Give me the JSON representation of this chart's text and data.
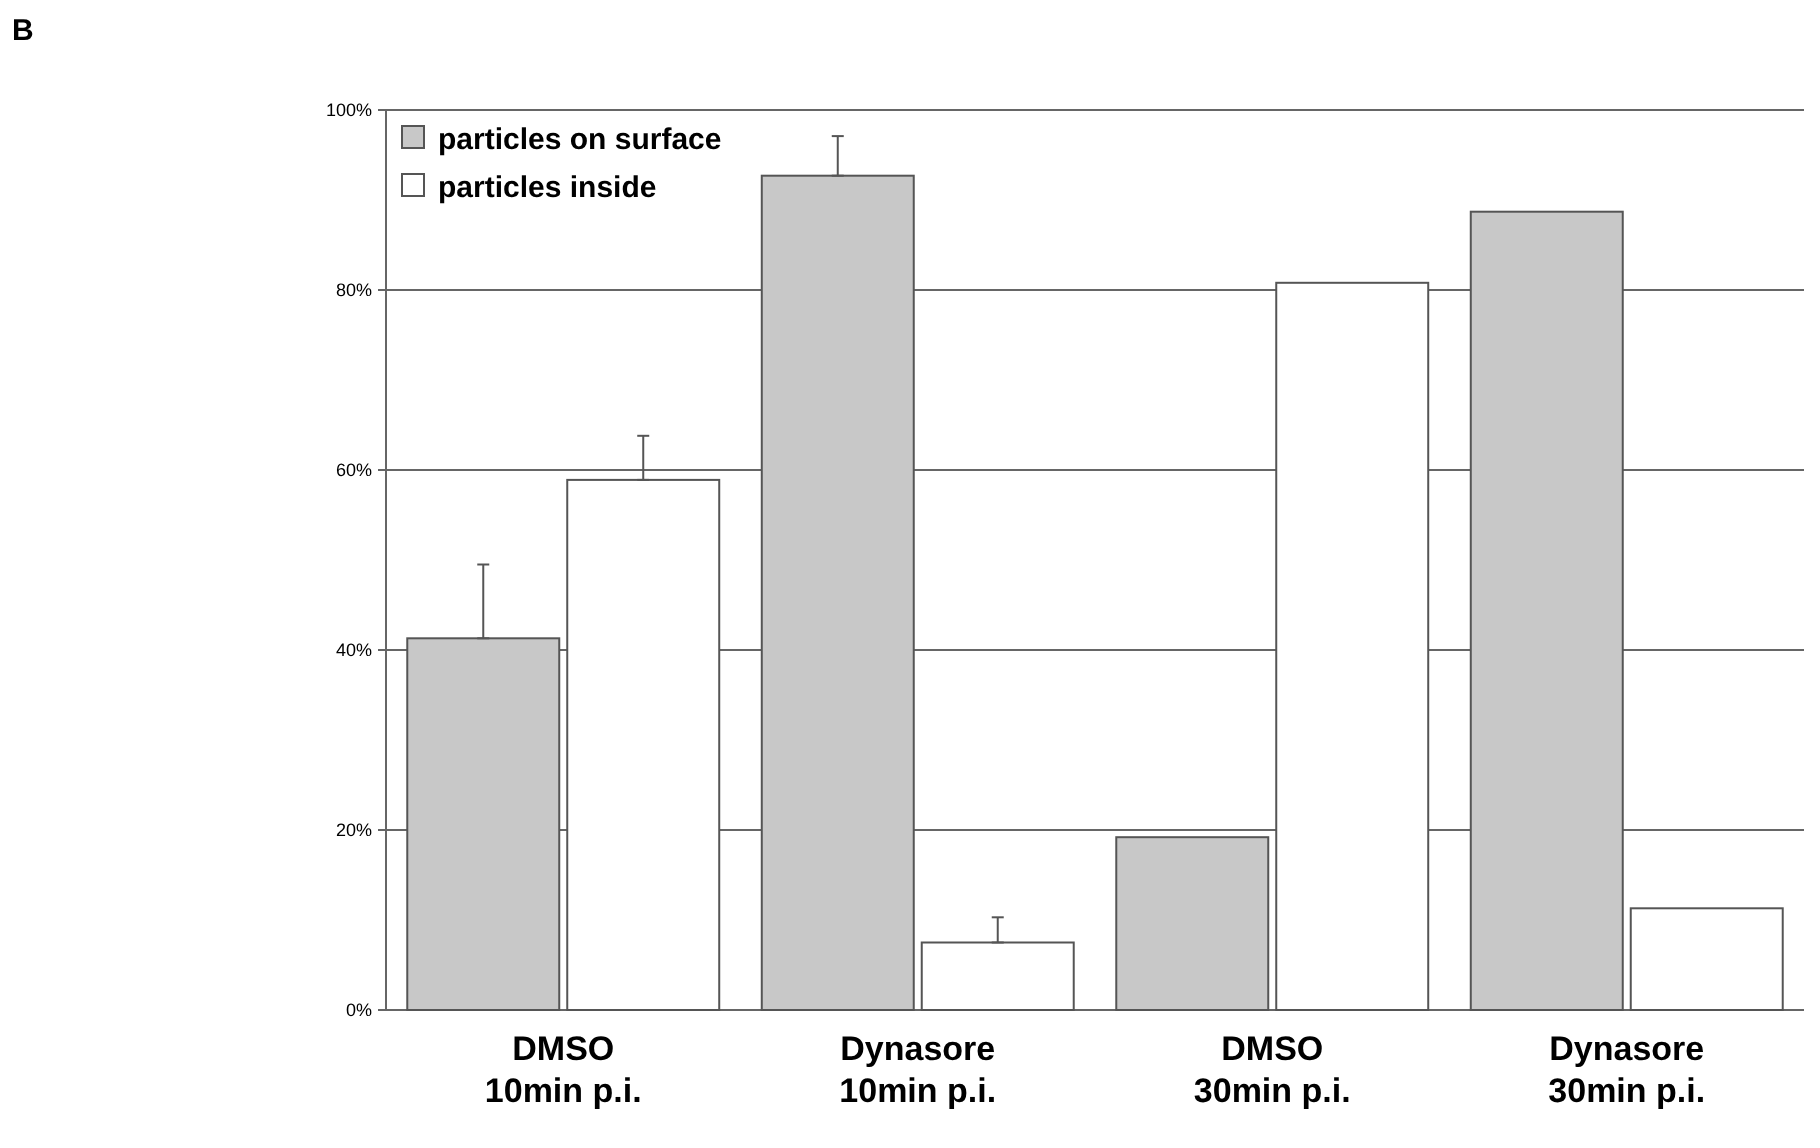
{
  "chart_data": {
    "type": "bar",
    "title": "B",
    "categories": [
      "DMSO\n10min p.i.",
      "Dynasore\n10min p.i.",
      "DMSO\n30min p.i.",
      "Dynasore\n30min p.i."
    ],
    "series": [
      {
        "name": "particles on surface",
        "color": "#c8c8c8",
        "values": [
          41.3,
          92.7,
          19.2,
          88.7
        ],
        "errors": [
          [
            41.3,
            49.5
          ],
          [
            92.7,
            97.1
          ],
          null,
          null
        ]
      },
      {
        "name": "particles inside",
        "color": "#ffffff",
        "values": [
          58.9,
          7.5,
          80.8,
          11.3
        ],
        "errors": [
          [
            58.9,
            63.8
          ],
          [
            7.5,
            10.3
          ],
          null,
          null
        ]
      }
    ],
    "ylim": [
      0,
      100
    ],
    "yticks": [
      {
        "value": 0,
        "label": "0%"
      },
      {
        "value": 20,
        "label": "20%"
      },
      {
        "value": 40,
        "label": "40%"
      },
      {
        "value": 60,
        "label": "60%"
      },
      {
        "value": 80,
        "label": "80%"
      },
      {
        "value": 100,
        "label": "100%"
      }
    ],
    "grid": "y",
    "legend": "top left"
  }
}
